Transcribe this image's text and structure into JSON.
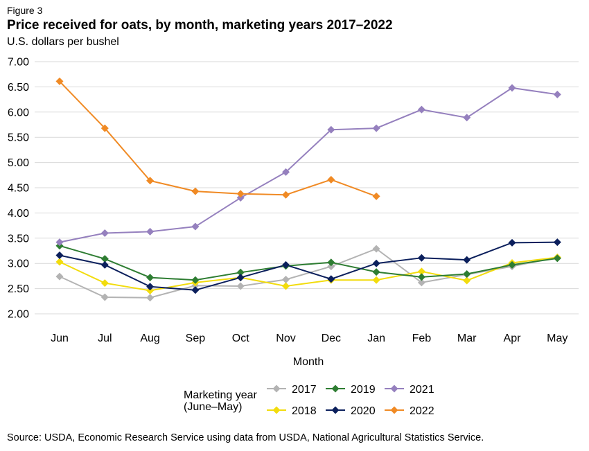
{
  "figure_label": "Figure 3",
  "source": "Source: USDA, Economic Research Service using data from USDA, National Agricultural Statistics Service.",
  "chart_data": {
    "type": "line",
    "title": "Price received for oats, by month, marketing years 2017–2022",
    "ylabel": "U.S. dollars per bushel",
    "xlabel": "Month",
    "categories": [
      "Jun",
      "Jul",
      "Aug",
      "Sep",
      "Oct",
      "Nov",
      "Dec",
      "Jan",
      "Feb",
      "Mar",
      "Apr",
      "May"
    ],
    "yticks": [
      "2.00",
      "2.50",
      "3.00",
      "3.50",
      "4.00",
      "4.50",
      "5.00",
      "5.50",
      "6.00",
      "6.50",
      "7.00"
    ],
    "ylim": [
      2,
      7
    ],
    "grid": true,
    "legend_title": [
      "Marketing year",
      "(June–May)"
    ],
    "legend_placement": "bottom",
    "series": [
      {
        "name": "2017",
        "color": "#b3b3b3",
        "values": [
          2.74,
          2.33,
          2.32,
          2.56,
          2.55,
          2.68,
          2.94,
          3.29,
          2.62,
          2.78,
          2.94,
          3.12
        ]
      },
      {
        "name": "2018",
        "color": "#f2dc0d",
        "values": [
          3.03,
          2.61,
          2.46,
          2.62,
          2.72,
          2.55,
          2.67,
          2.67,
          2.84,
          2.66,
          3.01,
          3.12
        ]
      },
      {
        "name": "2019",
        "color": "#2e7d32",
        "values": [
          3.35,
          3.09,
          2.72,
          2.67,
          2.82,
          2.95,
          3.02,
          2.83,
          2.73,
          2.79,
          2.97,
          3.1
        ]
      },
      {
        "name": "2020",
        "color": "#0b1f5c",
        "values": [
          3.16,
          2.97,
          2.54,
          2.47,
          2.72,
          2.97,
          2.69,
          3.0,
          3.11,
          3.07,
          3.41,
          3.42
        ]
      },
      {
        "name": "2021",
        "color": "#9580be",
        "values": [
          3.42,
          3.6,
          3.63,
          3.73,
          4.3,
          4.81,
          5.65,
          5.68,
          6.05,
          5.89,
          6.48,
          6.35
        ]
      },
      {
        "name": "2022",
        "color": "#f08a24",
        "values": [
          6.61,
          5.68,
          4.64,
          4.43,
          4.38,
          4.36,
          4.66,
          4.33,
          null,
          null,
          null,
          null
        ]
      }
    ]
  }
}
